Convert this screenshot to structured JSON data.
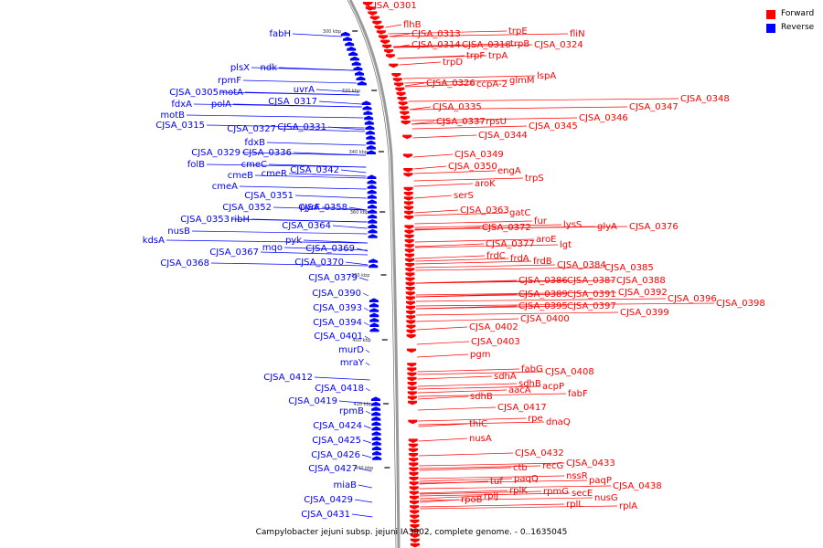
{
  "legend": [
    {
      "label": "Forward",
      "color": "#ff0000"
    },
    {
      "label": "Reverse",
      "color": "#0000ff"
    }
  ],
  "caption": "Campylobacter jejuni subsp. jejuni IA3902, complete genome. - 0..1635045",
  "ticks": [
    "300 kbp",
    "320 kbp",
    "340 kbp",
    "360 kbp",
    "380 kbp",
    "400 kbp",
    "420 kbp",
    "440 kbp"
  ],
  "forward_labels": [
    "CJSA_0301",
    "flhB",
    "CJSA_0313",
    "trpE",
    "fliN",
    "CJSA_0314",
    "CJSA_0318",
    "trpB",
    "CJSA_0324",
    "trpD",
    "trpF",
    "trpA",
    "lspA",
    "glmM",
    "CJSA_0326",
    "ccpA-2",
    "CJSA_0348",
    "CJSA_0347",
    "CJSA_0346",
    "CJSA_0345",
    "CJSA_0335",
    "CJSA_0337",
    "rpsU",
    "CJSA_0344",
    "CJSA_0349",
    "CJSA_0350",
    "engA",
    "trpS",
    "aroK",
    "serS",
    "CJSA_0363",
    "gatC",
    "fur",
    "lysS",
    "glyA",
    "CJSA_0376",
    "CJSA_0372",
    "aroE",
    "CJSA_0377",
    "lgt",
    "frdC",
    "frdA",
    "frdB",
    "CJSA_0384",
    "CJSA_0385",
    "CJSA_0386",
    "CJSA_0387",
    "CJSA_0388",
    "CJSA_0389",
    "CJSA_0391",
    "CJSA_0392",
    "CJSA_0396",
    "CJSA_0398",
    "CJSA_0395",
    "CJSA_0397",
    "CJSA_0400",
    "CJSA_0399",
    "CJSA_0402",
    "CJSA_0403",
    "pgm",
    "fabG",
    "CJSA_0408",
    "sdhA",
    "sdhB",
    "acpP",
    "sdhB",
    "aacA",
    "fabF",
    "CJSA_0417",
    "rpe",
    "dnaQ",
    "thiC",
    "nusA",
    "CJSA_0432",
    "recG",
    "CJSA_0433",
    "ctb",
    "nssR",
    "paqQ",
    "paqP",
    "tuf",
    "CJSA_0438",
    "rplK",
    "rpmG",
    "secE",
    "rplJ",
    "nusG",
    "rpoB",
    "rplL",
    "rplA"
  ],
  "reverse_labels": [
    "fabH",
    "plsX",
    "ndk",
    "rpmF",
    "CJSA_0305",
    "motA",
    "fdxA",
    "polA",
    "motB",
    "uvrA",
    "CJSA_0317",
    "CJSA_0315",
    "CJSA_0327",
    "CJSA_0331",
    "fdxB",
    "CJSA_0329",
    "CJSA_0336",
    "folB",
    "cmeC",
    "cmeB",
    "cmeR",
    "CJSA_0342",
    "cmeA",
    "CJSA_0351",
    "CJSA_0352",
    "pyrF",
    "CJSA_0358",
    "CJSA_0353",
    "ribH",
    "nusB",
    "CJSA_0364",
    "kdsA",
    "pyk",
    "mqo",
    "CJSA_0367",
    "CJSA_0369",
    "CJSA_0368",
    "CJSA_0370",
    "CJSA_0379",
    "CJSA_0390",
    "CJSA_0393",
    "CJSA_0394",
    "CJSA_0401",
    "murD",
    "mraY",
    "CJSA_0412",
    "CJSA_0418",
    "CJSA_0419",
    "rpmB",
    "CJSA_0424",
    "CJSA_0425",
    "CJSA_0426",
    "CJSA_0427",
    "miaB",
    "CJSA_0429",
    "CJSA_0431"
  ]
}
